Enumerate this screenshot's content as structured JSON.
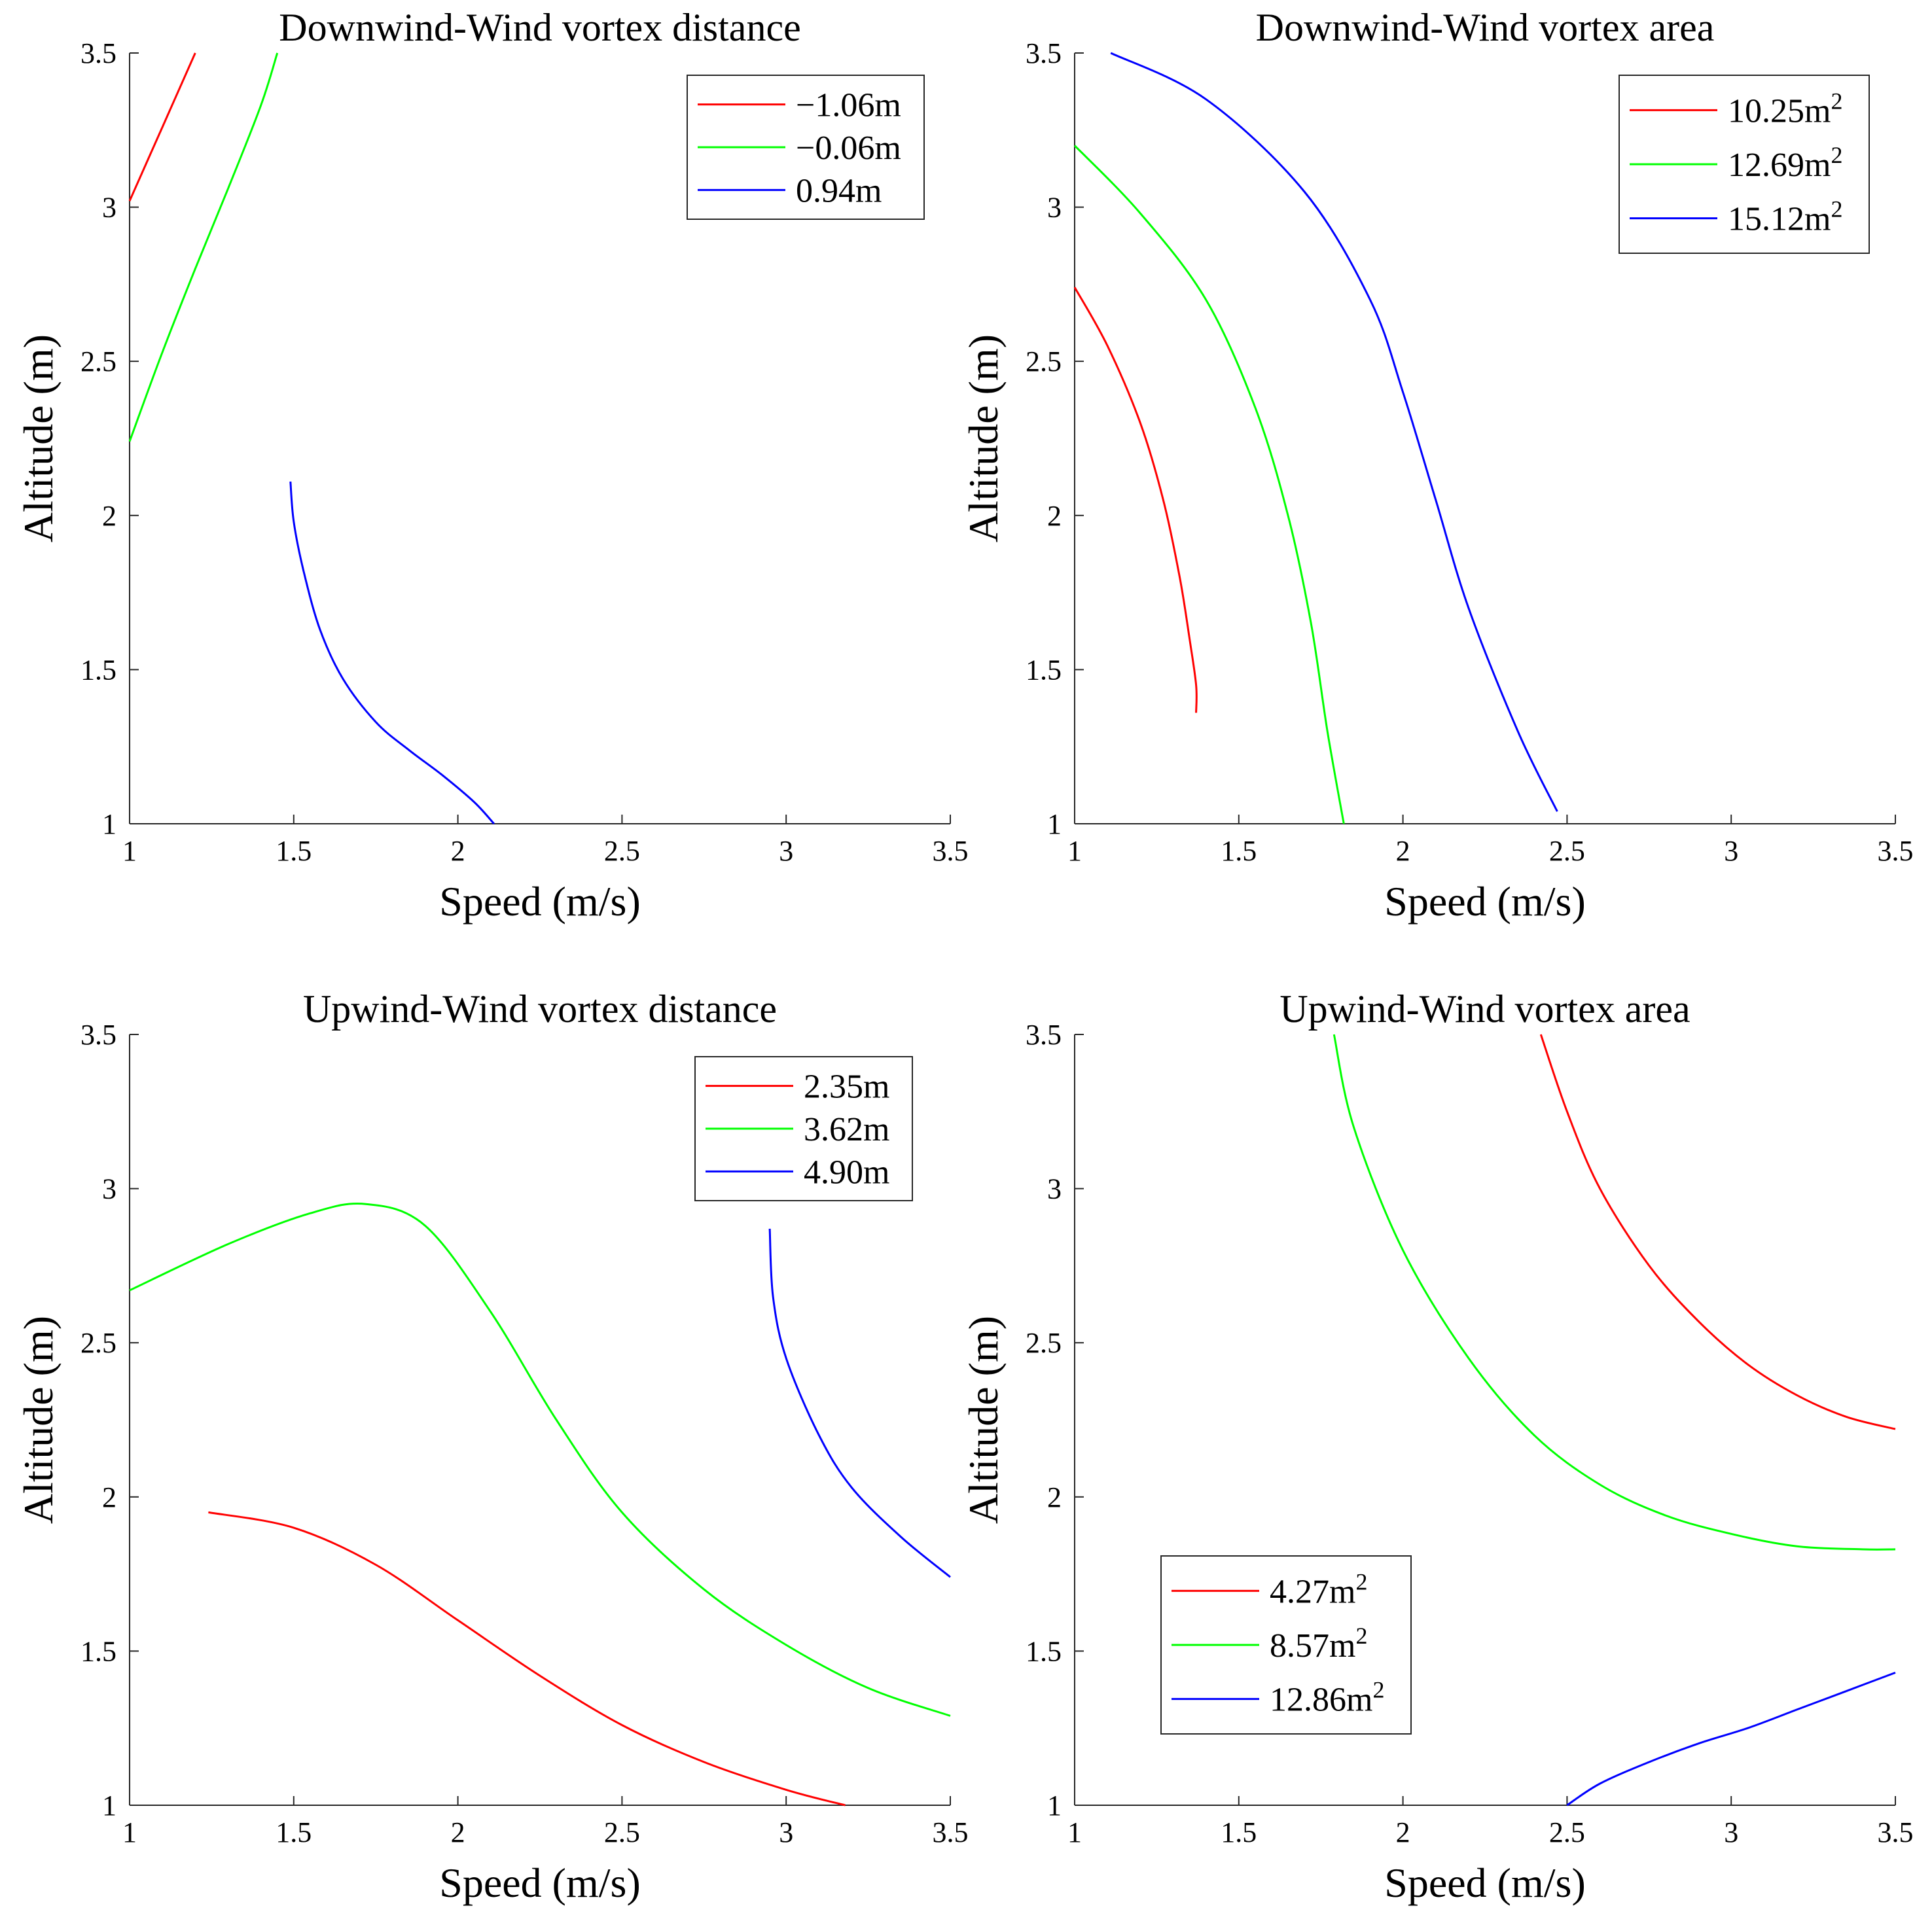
{
  "chart_data": [
    {
      "type": "line",
      "title": "Downwind-Wind vortex distance",
      "xlabel": "Speed (m/s)",
      "ylabel": "Altitude (m)",
      "xlim": [
        1,
        3.5
      ],
      "ylim": [
        1,
        3.5
      ],
      "xticks": [
        "1",
        "1.5",
        "2",
        "2.5",
        "3",
        "3.5"
      ],
      "yticks": [
        "1",
        "1.5",
        "2",
        "2.5",
        "3",
        "3.5"
      ],
      "legend_position": "top-right",
      "series": [
        {
          "name": "−1.06m",
          "color": "#ff0000",
          "x": [
            1.0,
            1.1,
            1.2
          ],
          "y": [
            3.02,
            3.26,
            3.5
          ]
        },
        {
          "name": "−0.06m",
          "color": "#00ff00",
          "x": [
            1.0,
            1.1,
            1.2,
            1.3,
            1.4,
            1.45
          ],
          "y": [
            2.24,
            2.53,
            2.8,
            3.06,
            3.33,
            3.5
          ]
        },
        {
          "name": "0.94m",
          "color": "#0000ff",
          "x": [
            1.49,
            1.5,
            1.53,
            1.58,
            1.65,
            1.75,
            1.85,
            1.95,
            2.05,
            2.11
          ],
          "y": [
            2.11,
            1.98,
            1.82,
            1.63,
            1.47,
            1.33,
            1.24,
            1.16,
            1.07,
            1.0
          ]
        }
      ]
    },
    {
      "type": "line",
      "title": "Downwind-Wind vortex area",
      "xlabel": "Speed (m/s)",
      "ylabel": "Altitude (m)",
      "xlim": [
        1,
        3.5
      ],
      "ylim": [
        1,
        3.5
      ],
      "xticks": [
        "1",
        "1.5",
        "2",
        "2.5",
        "3",
        "3.5"
      ],
      "yticks": [
        "1",
        "1.5",
        "2",
        "2.5",
        "3",
        "3.5"
      ],
      "legend_position": "top-right",
      "series": [
        {
          "name": "10.25m",
          "sup": "2",
          "color": "#ff0000",
          "x": [
            1.0,
            1.1,
            1.2,
            1.27,
            1.32,
            1.35,
            1.37,
            1.37
          ],
          "y": [
            2.74,
            2.55,
            2.3,
            2.05,
            1.8,
            1.6,
            1.45,
            1.36
          ]
        },
        {
          "name": "12.69m",
          "sup": "2",
          "color": "#00ff00",
          "x": [
            1.0,
            1.2,
            1.4,
            1.55,
            1.65,
            1.72,
            1.77,
            1.82
          ],
          "y": [
            3.2,
            2.98,
            2.7,
            2.35,
            2.0,
            1.65,
            1.3,
            1.0
          ]
        },
        {
          "name": "15.12m",
          "sup": "2",
          "color": "#0000ff",
          "x": [
            1.11,
            1.4,
            1.7,
            1.9,
            2.0,
            2.1,
            2.2,
            2.35,
            2.47
          ],
          "y": [
            3.5,
            3.35,
            3.05,
            2.7,
            2.4,
            2.05,
            1.7,
            1.3,
            1.04
          ]
        }
      ]
    },
    {
      "type": "line",
      "title": "Upwind-Wind vortex distance",
      "xlabel": "Speed (m/s)",
      "ylabel": "Altitude (m)",
      "xlim": [
        1,
        3.5
      ],
      "ylim": [
        1,
        3.5
      ],
      "xticks": [
        "1",
        "1.5",
        "2",
        "2.5",
        "3",
        "3.5"
      ],
      "yticks": [
        "1",
        "1.5",
        "2",
        "2.5",
        "3",
        "3.5"
      ],
      "legend_position": "top-right",
      "series": [
        {
          "name": "2.35m",
          "color": "#ff0000",
          "x": [
            1.24,
            1.5,
            1.75,
            2.0,
            2.25,
            2.5,
            2.75,
            3.0,
            3.18
          ],
          "y": [
            1.95,
            1.9,
            1.78,
            1.6,
            1.42,
            1.26,
            1.14,
            1.05,
            1.0
          ]
        },
        {
          "name": "3.62m",
          "color": "#00ff00",
          "x": [
            1.0,
            1.3,
            1.55,
            1.72,
            1.9,
            2.1,
            2.3,
            2.5,
            2.75,
            3.0,
            3.25,
            3.5
          ],
          "y": [
            2.67,
            2.82,
            2.92,
            2.95,
            2.88,
            2.6,
            2.25,
            1.95,
            1.7,
            1.52,
            1.38,
            1.29
          ]
        },
        {
          "name": "4.90m",
          "color": "#0000ff",
          "x": [
            2.95,
            2.96,
            3.0,
            3.1,
            3.2,
            3.35,
            3.5
          ],
          "y": [
            2.87,
            2.65,
            2.45,
            2.2,
            2.03,
            1.87,
            1.74
          ]
        }
      ]
    },
    {
      "type": "line",
      "title": "Upwind-Wind vortex area",
      "xlabel": "Speed (m/s)",
      "ylabel": "Altitude (m)",
      "xlim": [
        1,
        3.5
      ],
      "ylim": [
        1,
        3.5
      ],
      "xticks": [
        "1",
        "1.5",
        "2",
        "2.5",
        "3",
        "3.5"
      ],
      "yticks": [
        "1",
        "1.5",
        "2",
        "2.5",
        "3",
        "3.5"
      ],
      "legend_position": "bottom-left",
      "series": [
        {
          "name": "4.27m",
          "sup": "2",
          "color": "#ff0000",
          "x": [
            2.42,
            2.5,
            2.6,
            2.75,
            2.9,
            3.05,
            3.2,
            3.35,
            3.5
          ],
          "y": [
            3.5,
            3.25,
            3.0,
            2.75,
            2.57,
            2.43,
            2.33,
            2.26,
            2.22
          ]
        },
        {
          "name": "8.57m",
          "sup": "2",
          "color": "#00ff00",
          "x": [
            1.79,
            1.85,
            2.0,
            2.2,
            2.4,
            2.6,
            2.8,
            3.0,
            3.2,
            3.4,
            3.5
          ],
          "y": [
            3.5,
            3.2,
            2.8,
            2.45,
            2.2,
            2.04,
            1.94,
            1.88,
            1.84,
            1.83,
            1.83
          ]
        },
        {
          "name": "12.86m",
          "sup": "2",
          "color": "#0000ff",
          "x": [
            2.5,
            2.6,
            2.75,
            2.9,
            3.05,
            3.2,
            3.35,
            3.5
          ],
          "y": [
            1.0,
            1.07,
            1.14,
            1.2,
            1.25,
            1.31,
            1.37,
            1.43
          ]
        }
      ]
    }
  ]
}
